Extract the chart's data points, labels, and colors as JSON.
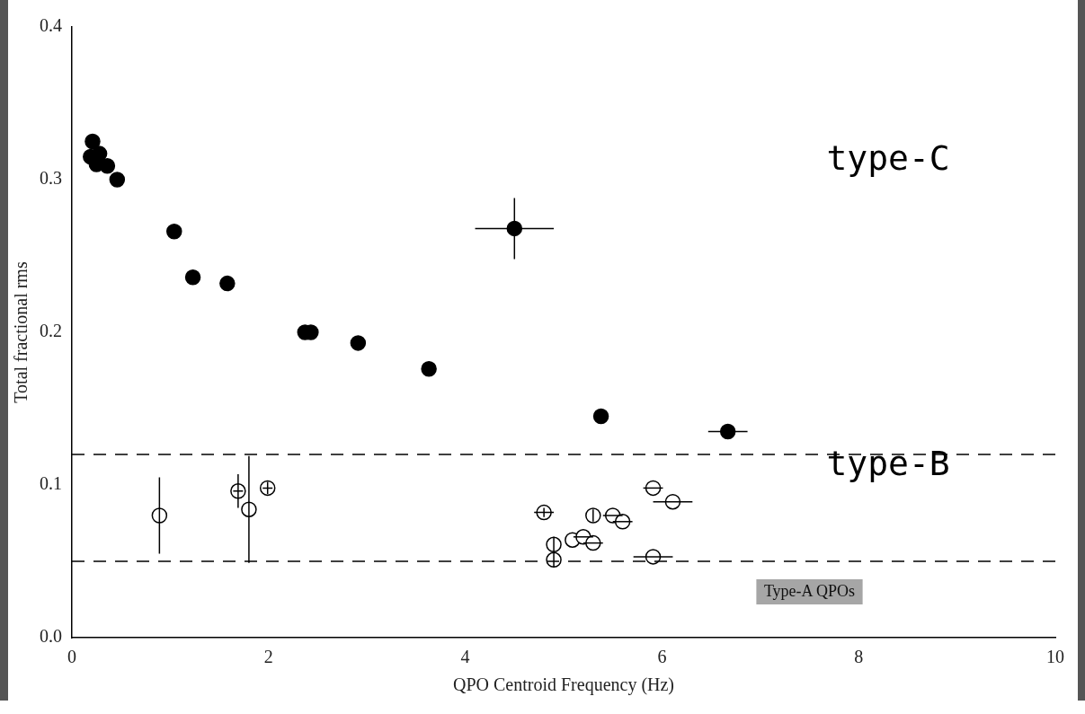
{
  "chart_data": {
    "type": "scatter",
    "xlabel": "QPO Centroid Frequency (Hz)",
    "ylabel": "Total fractional rms",
    "xlim": [
      0,
      10
    ],
    "xticks": [
      0,
      2,
      4,
      6,
      8,
      10
    ],
    "ylim": [
      0,
      0.4
    ],
    "yticks": [
      {
        "value": 0,
        "label": "0.0"
      },
      0.1,
      0.2,
      0.3,
      0.4
    ],
    "grid": false,
    "legend": false,
    "marker": "circle",
    "series": [
      {
        "color": "#000000",
        "x": [
          0.21,
          0.19,
          0.28,
          0.25,
          0.36,
          0.46,
          1.04,
          1.23,
          1.58,
          2.37,
          2.43,
          2.91,
          3.63,
          4.5,
          5.38,
          6.67
        ],
        "values": [
          0.325,
          0.315,
          0.317,
          0.31,
          0.309,
          0.3,
          0.266,
          0.236,
          0.232,
          0.2,
          0.2,
          0.193,
          0.176,
          0.268,
          0.145,
          0.135
        ],
        "errors": [
          null,
          null,
          null,
          null,
          null,
          null,
          null,
          null,
          null,
          null,
          null,
          null,
          null,
          0.02,
          null,
          null
        ],
        "xerrors": [
          null,
          null,
          null,
          null,
          null,
          null,
          null,
          null,
          null,
          null,
          null,
          null,
          null,
          0.4,
          null,
          0.2
        ]
      },
      {
        "color": "#ffffff",
        "x": [
          0.89,
          1.69,
          1.8,
          1.99,
          4.8,
          4.9,
          4.9,
          5.3,
          5.09,
          5.2,
          5.3,
          5.5,
          5.6,
          5.91,
          6.11,
          5.91
        ],
        "values": [
          0.08,
          0.096,
          0.084,
          0.098,
          0.082,
          0.061,
          0.051,
          0.08,
          0.064,
          0.066,
          0.062,
          0.08,
          0.076,
          0.098,
          0.089,
          0.053
        ],
        "errors": [
          0.025,
          0.011,
          0.035,
          0.004,
          0.003,
          0.005,
          0.005,
          0.004,
          null,
          null,
          null,
          null,
          null,
          null,
          null,
          null
        ],
        "xerrors": [
          null,
          0.05,
          null,
          0.05,
          0.1,
          null,
          null,
          null,
          null,
          0.1,
          0.1,
          0.1,
          0.1,
          0.1,
          0.2,
          0.2
        ]
      }
    ],
    "ref_lines": [
      {
        "axis": "y",
        "value": 0.12,
        "line_style": "dashed"
      },
      {
        "axis": "y",
        "value": 0.05,
        "line_style": "dashed"
      }
    ],
    "annotations": [
      "type-C",
      "type-B",
      "Type-A QPOs"
    ]
  }
}
